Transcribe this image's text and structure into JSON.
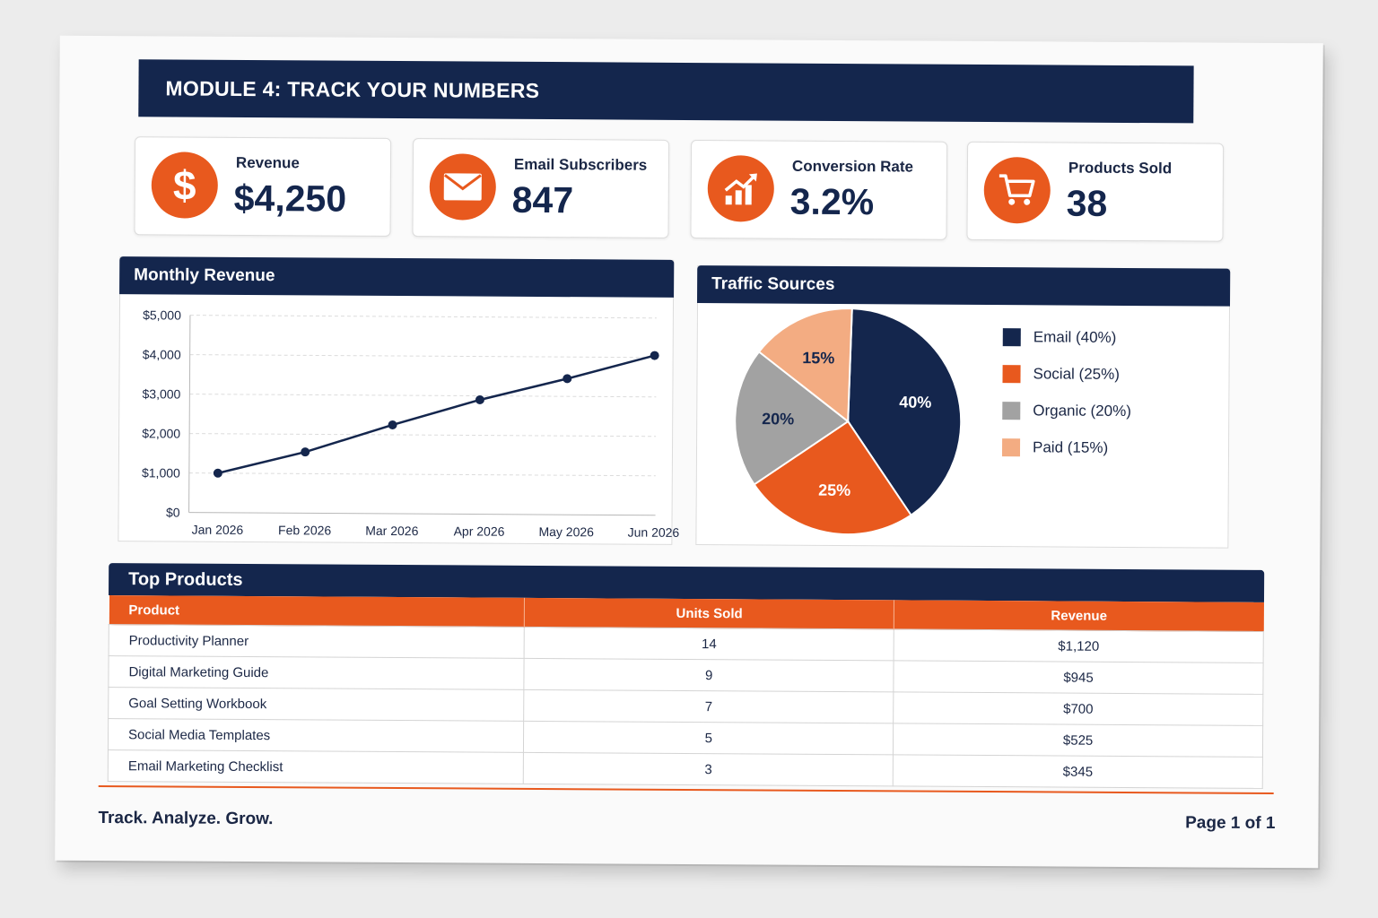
{
  "module_title": "MODULE 4: TRACK YOUR NUMBERS",
  "kpis": [
    {
      "label": "Revenue",
      "value": "$4,250",
      "icon": "dollar-icon"
    },
    {
      "label": "Email Subscribers",
      "value": "847",
      "icon": "envelope-icon"
    },
    {
      "label": "Conversion Rate",
      "value": "3.2%",
      "icon": "growth-chart-icon"
    },
    {
      "label": "Products Sold",
      "value": "38",
      "icon": "shopping-cart-icon"
    }
  ],
  "colors": {
    "navy": "#14264d",
    "orange": "#e8591e",
    "gray": "#a2a2a2",
    "peach": "#f3ac82"
  },
  "monthly_revenue": {
    "title": "Monthly Revenue"
  },
  "traffic_sources": {
    "title": "Traffic Sources"
  },
  "chart_data": [
    {
      "type": "line",
      "title": "Monthly Revenue",
      "x": [
        "Jan 2026",
        "Feb 2026",
        "Mar 2026",
        "Apr 2026",
        "May 2026",
        "Jun 2026"
      ],
      "y_ticks": [
        "$0",
        "$1,000",
        "$2,000",
        "$3,000",
        "$4,000",
        "$5,000"
      ],
      "series": [
        {
          "values": [
            1000,
            1550,
            2250,
            2900,
            3450,
            4050
          ]
        }
      ],
      "ylim": [
        0,
        5000
      ],
      "grid": "horizontal dashed"
    },
    {
      "type": "pie",
      "title": "Traffic Sources",
      "slices": [
        {
          "name": "Email (40%)",
          "value": 40,
          "label": "40%",
          "color": "#14264d"
        },
        {
          "name": "Social (25%)",
          "value": 25,
          "label": "25%",
          "color": "#e8591e"
        },
        {
          "name": "Organic (20%)",
          "value": 20,
          "label": "20%",
          "color": "#a2a2a2"
        },
        {
          "name": "Paid (15%)",
          "value": 15,
          "label": "15%",
          "color": "#f3ac82"
        }
      ],
      "legend": "right"
    }
  ],
  "top_products": {
    "title": "Top Products",
    "columns": [
      "Product",
      "Units Sold",
      "Revenue"
    ],
    "rows": [
      [
        "Productivity Planner",
        "14",
        "$1,120"
      ],
      [
        "Digital Marketing Guide",
        "9",
        "$945"
      ],
      [
        "Goal Setting Workbook",
        "7",
        "$700"
      ],
      [
        "Social Media Templates",
        "5",
        "$525"
      ],
      [
        "Email Marketing Checklist",
        "3",
        "$345"
      ]
    ]
  },
  "footer": {
    "tagline": "Track. Analyze. Grow.",
    "page": "Page 1 of 1"
  }
}
